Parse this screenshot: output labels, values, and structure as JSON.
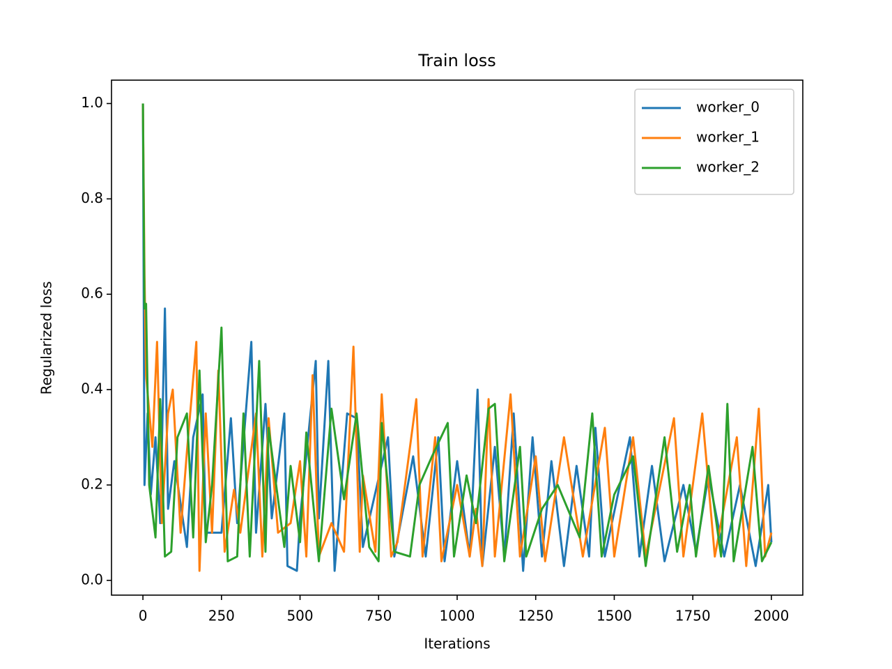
{
  "chart_data": {
    "type": "line",
    "title": "Train loss",
    "x_label": "Iterations",
    "y_label": "Regularized loss",
    "xlim": [
      -100,
      2100
    ],
    "ylim": [
      -0.031,
      1.049
    ],
    "xticks": [
      0,
      250,
      500,
      750,
      1000,
      1250,
      1500,
      1750,
      2000
    ],
    "yticks": [
      {
        "value": 0,
        "label": "0.0"
      },
      0.2,
      0.4,
      0.6,
      0.8,
      {
        "value": 1,
        "label": "1.0"
      }
    ],
    "legend": "upper right",
    "grid": false,
    "series": [
      {
        "name": "worker_0",
        "color": "#1f77b4",
        "x": [
          0,
          5,
          15,
          25,
          40,
          55,
          70,
          80,
          100,
          140,
          160,
          190,
          200,
          250,
          280,
          300,
          345,
          360,
          390,
          410,
          450,
          460,
          490,
          500,
          550,
          560,
          590,
          610,
          650,
          680,
          700,
          780,
          800,
          860,
          900,
          940,
          960,
          1000,
          1040,
          1065,
          1080,
          1120,
          1150,
          1180,
          1210,
          1240,
          1270,
          1300,
          1340,
          1380,
          1420,
          1440,
          1470,
          1550,
          1580,
          1620,
          1660,
          1720,
          1760,
          1800,
          1850,
          1900,
          1950,
          1990,
          2000
        ],
        "values": [
          1.0,
          0.2,
          0.35,
          0.18,
          0.3,
          0.12,
          0.57,
          0.15,
          0.25,
          0.07,
          0.3,
          0.39,
          0.1,
          0.1,
          0.34,
          0.12,
          0.5,
          0.1,
          0.37,
          0.13,
          0.35,
          0.03,
          0.02,
          0.13,
          0.46,
          0.13,
          0.46,
          0.02,
          0.35,
          0.34,
          0.07,
          0.3,
          0.05,
          0.26,
          0.05,
          0.3,
          0.04,
          0.25,
          0.05,
          0.4,
          0.03,
          0.28,
          0.05,
          0.35,
          0.02,
          0.3,
          0.05,
          0.25,
          0.03,
          0.24,
          0.05,
          0.32,
          0.05,
          0.3,
          0.05,
          0.24,
          0.04,
          0.2,
          0.06,
          0.22,
          0.05,
          0.2,
          0.03,
          0.2,
          0.08
        ]
      },
      {
        "name": "worker_1",
        "color": "#ff7f0e",
        "x": [
          0,
          5,
          10,
          30,
          45,
          60,
          80,
          95,
          120,
          140,
          170,
          180,
          200,
          220,
          240,
          260,
          290,
          310,
          330,
          360,
          380,
          400,
          430,
          470,
          500,
          520,
          540,
          560,
          600,
          640,
          670,
          690,
          700,
          740,
          760,
          790,
          810,
          870,
          890,
          930,
          950,
          1000,
          1040,
          1060,
          1080,
          1100,
          1120,
          1170,
          1200,
          1250,
          1280,
          1340,
          1400,
          1470,
          1500,
          1560,
          1600,
          1690,
          1720,
          1780,
          1820,
          1890,
          1920,
          1960,
          1980,
          2000
        ],
        "values": [
          1.0,
          0.64,
          0.43,
          0.28,
          0.5,
          0.12,
          0.35,
          0.4,
          0.1,
          0.27,
          0.5,
          0.02,
          0.35,
          0.1,
          0.44,
          0.06,
          0.19,
          0.1,
          0.2,
          0.35,
          0.05,
          0.34,
          0.1,
          0.12,
          0.25,
          0.05,
          0.43,
          0.05,
          0.12,
          0.06,
          0.49,
          0.06,
          0.22,
          0.06,
          0.39,
          0.05,
          0.08,
          0.38,
          0.05,
          0.3,
          0.04,
          0.2,
          0.05,
          0.15,
          0.03,
          0.38,
          0.05,
          0.39,
          0.05,
          0.26,
          0.04,
          0.3,
          0.05,
          0.32,
          0.05,
          0.3,
          0.05,
          0.34,
          0.05,
          0.35,
          0.05,
          0.3,
          0.03,
          0.36,
          0.05,
          0.1
        ]
      },
      {
        "name": "worker_2",
        "color": "#2ca02c",
        "x": [
          0,
          5,
          10,
          20,
          40,
          55,
          70,
          90,
          110,
          140,
          160,
          180,
          200,
          220,
          250,
          270,
          300,
          320,
          340,
          370,
          390,
          400,
          450,
          470,
          500,
          520,
          560,
          600,
          640,
          680,
          720,
          750,
          760,
          800,
          850,
          880,
          920,
          970,
          990,
          1030,
          1060,
          1100,
          1120,
          1150,
          1200,
          1220,
          1270,
          1320,
          1390,
          1430,
          1460,
          1500,
          1560,
          1600,
          1660,
          1700,
          1740,
          1760,
          1800,
          1840,
          1860,
          1880,
          1940,
          1970,
          2000
        ],
        "values": [
          1.0,
          0.57,
          0.58,
          0.2,
          0.09,
          0.38,
          0.05,
          0.06,
          0.3,
          0.35,
          0.09,
          0.44,
          0.08,
          0.2,
          0.53,
          0.04,
          0.05,
          0.35,
          0.05,
          0.46,
          0.06,
          0.32,
          0.07,
          0.24,
          0.08,
          0.31,
          0.04,
          0.36,
          0.17,
          0.35,
          0.07,
          0.04,
          0.33,
          0.06,
          0.05,
          0.2,
          0.26,
          0.33,
          0.05,
          0.22,
          0.12,
          0.36,
          0.37,
          0.04,
          0.28,
          0.05,
          0.15,
          0.2,
          0.09,
          0.35,
          0.05,
          0.18,
          0.26,
          0.03,
          0.3,
          0.06,
          0.2,
          0.05,
          0.24,
          0.05,
          0.37,
          0.04,
          0.28,
          0.04,
          0.08
        ]
      }
    ]
  }
}
